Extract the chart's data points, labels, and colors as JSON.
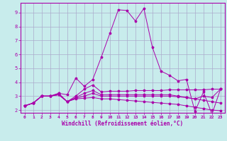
{
  "xlabel": "Windchill (Refroidissement éolien,°C)",
  "xlim": [
    -0.5,
    23.5
  ],
  "ylim": [
    1.8,
    9.7
  ],
  "yticks": [
    2,
    3,
    4,
    5,
    6,
    7,
    8,
    9
  ],
  "xticks": [
    0,
    1,
    2,
    3,
    4,
    5,
    6,
    7,
    8,
    9,
    10,
    11,
    12,
    13,
    14,
    15,
    16,
    17,
    18,
    19,
    20,
    21,
    22,
    23
  ],
  "background_color": "#c8ecec",
  "grid_color": "#aaaacc",
  "line_color": "#aa00aa",
  "series": [
    [
      2.3,
      2.5,
      3.0,
      3.0,
      3.2,
      3.1,
      4.3,
      3.7,
      4.2,
      5.8,
      7.5,
      9.2,
      9.15,
      8.4,
      9.3,
      6.5,
      4.8,
      4.5,
      4.1,
      4.2,
      1.9,
      3.3,
      1.7,
      3.5
    ],
    [
      2.3,
      2.5,
      3.0,
      3.0,
      3.2,
      2.6,
      3.0,
      3.5,
      3.8,
      3.3,
      3.35,
      3.35,
      3.35,
      3.4,
      3.4,
      3.4,
      3.4,
      3.45,
      3.45,
      3.45,
      3.45,
      3.45,
      3.5,
      3.5
    ],
    [
      2.3,
      2.5,
      3.0,
      3.0,
      3.1,
      2.6,
      2.9,
      3.2,
      3.4,
      3.1,
      3.1,
      3.1,
      3.1,
      3.1,
      3.1,
      3.1,
      3.1,
      3.1,
      3.0,
      2.9,
      2.8,
      2.7,
      2.6,
      2.5
    ],
    [
      2.3,
      2.5,
      3.0,
      3.0,
      3.1,
      2.6,
      2.85,
      3.0,
      3.2,
      3.0,
      3.0,
      3.0,
      3.0,
      3.0,
      3.0,
      3.0,
      3.0,
      3.0,
      2.95,
      2.9,
      2.8,
      3.0,
      2.9,
      3.5
    ],
    [
      2.3,
      2.5,
      3.0,
      3.0,
      3.1,
      2.6,
      2.8,
      2.85,
      2.9,
      2.8,
      2.8,
      2.75,
      2.7,
      2.65,
      2.6,
      2.55,
      2.5,
      2.45,
      2.4,
      2.3,
      2.2,
      2.1,
      2.0,
      1.95
    ]
  ]
}
